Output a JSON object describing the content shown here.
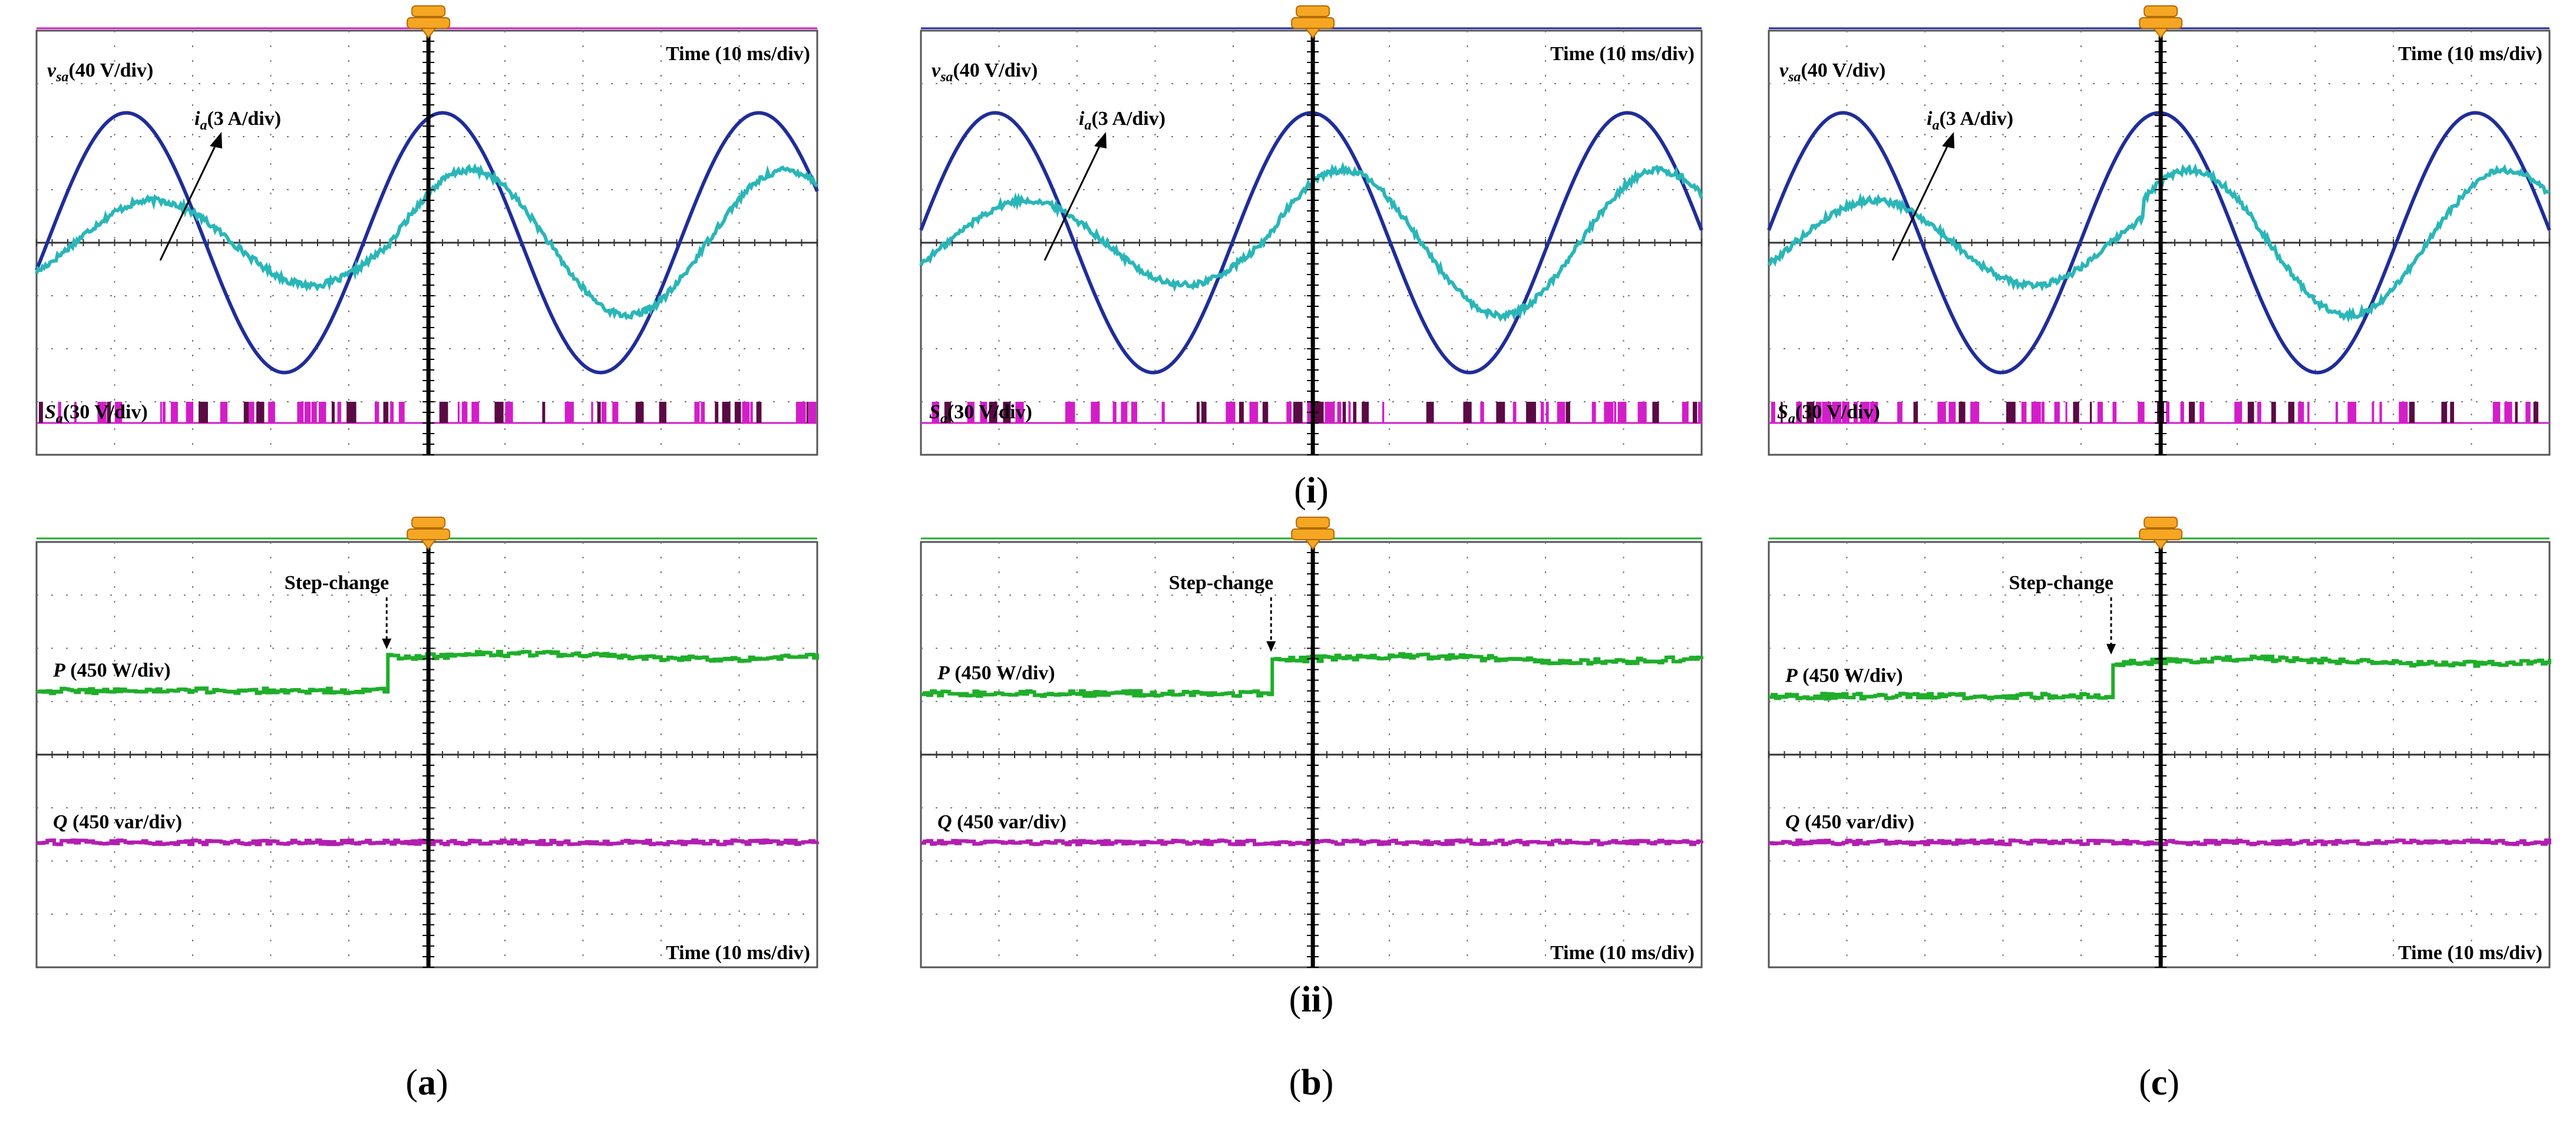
{
  "figure": {
    "row_labels": [
      "(i)",
      "(ii)"
    ],
    "column_captions": [
      "(a)",
      "(b)",
      "(c)"
    ]
  },
  "labels": {
    "time_div": "Time (10 ms/div)",
    "vsa_main": "v",
    "vsa_sub": "sa",
    "vsa_scale": "(40 V/div)",
    "ia_main": "i",
    "ia_sub": "a",
    "ia_scale": "(3 A/div)",
    "sa_main": "S",
    "sa_sub": "a",
    "sa_scale": "(30 V/div)",
    "step_change": "Step-change",
    "p_label": "P (450 W/div)",
    "q_label": "Q (450 var/div)"
  },
  "colors": {
    "voltage": "#1f2d9a",
    "current": "#2ab6b8",
    "switching": "#d21ec8",
    "switching_dark": "#5a0a44",
    "active_power": "#1fae2a",
    "reactive_power": "#b21eb0",
    "grid": "#555555",
    "trigger": "#f5a623"
  },
  "chart_data": [
    {
      "type": "line",
      "panel": "(a)-(i)",
      "title": "Time (10 ms/div)",
      "x_unit": "div",
      "xlim": [
        -5,
        5
      ],
      "ylim": [
        -4,
        4
      ],
      "series": [
        {
          "name": "v_sa (40 V/div)",
          "kind": "sine",
          "amplitude_div": 2.45,
          "period_div": 4.05,
          "peak_at_div": 0.2
        },
        {
          "name": "i_a (3 A/div)",
          "kind": "sine",
          "amplitude_div": [
            0.8,
            1.37
          ],
          "period_div": 4.05,
          "peak_at_div": 0.55,
          "step_at_div": -0.5,
          "step_height_div": 0.35
        },
        {
          "name": "S_a (30 V/div)",
          "kind": "pwm",
          "baseline_div": -3.4,
          "high_div": -3.0
        }
      ]
    },
    {
      "type": "line",
      "panel": "(b)-(i)",
      "title": "Time (10 ms/div)",
      "x_unit": "div",
      "xlim": [
        -5,
        5
      ],
      "ylim": [
        -4,
        4
      ],
      "series": [
        {
          "name": "v_sa (40 V/div)",
          "kind": "sine",
          "amplitude_div": 2.45,
          "period_div": 4.05,
          "peak_at_div": 0.0
        },
        {
          "name": "i_a (3 A/div)",
          "kind": "sine",
          "amplitude_div": [
            0.8,
            1.37
          ],
          "period_div": 4.05,
          "peak_at_div": 0.4,
          "step_at_div": -0.6,
          "step_height_div": 0.4
        },
        {
          "name": "S_a (30 V/div)",
          "kind": "pwm",
          "baseline_div": -3.4,
          "high_div": -3.0
        }
      ]
    },
    {
      "type": "line",
      "panel": "(c)-(i)",
      "title": "Time (10 ms/div)",
      "x_unit": "div",
      "xlim": [
        -5,
        5
      ],
      "ylim": [
        -4,
        4
      ],
      "series": [
        {
          "name": "v_sa (40 V/div)",
          "kind": "sine",
          "amplitude_div": 2.45,
          "period_div": 4.05,
          "peak_at_div": 0.0
        },
        {
          "name": "i_a (3 A/div)",
          "kind": "sine",
          "amplitude_div": [
            0.8,
            1.37
          ],
          "period_div": 4.05,
          "peak_at_div": 0.4,
          "step_at_div": -0.2,
          "step_height_div": 0.4
        },
        {
          "name": "S_a (30 V/div)",
          "kind": "pwm",
          "baseline_div": -3.4,
          "high_div": -3.0
        }
      ]
    },
    {
      "type": "line",
      "panel": "(a)-(ii)",
      "title": "Time (10 ms/div)",
      "x_unit": "div",
      "xlim": [
        -5,
        5
      ],
      "ylim": [
        -4,
        4
      ],
      "annotation": "Step-change",
      "series": [
        {
          "name": "P (450 W/div)",
          "kind": "step",
          "before_div": 1.2,
          "after_div": 1.85,
          "step_at_div": -0.5
        },
        {
          "name": "Q (450 var/div)",
          "kind": "flat",
          "level_div": -1.65
        }
      ]
    },
    {
      "type": "line",
      "panel": "(b)-(ii)",
      "title": "Time (10 ms/div)",
      "x_unit": "div",
      "xlim": [
        -5,
        5
      ],
      "ylim": [
        -4,
        4
      ],
      "annotation": "Step-change",
      "series": [
        {
          "name": "P (450 W/div)",
          "kind": "step",
          "before_div": 1.15,
          "after_div": 1.8,
          "step_at_div": -0.5
        },
        {
          "name": "Q (450 var/div)",
          "kind": "flat",
          "level_div": -1.65
        }
      ]
    },
    {
      "type": "line",
      "panel": "(c)-(ii)",
      "title": "Time (10 ms/div)",
      "x_unit": "div",
      "xlim": [
        -5,
        5
      ],
      "ylim": [
        -4,
        4
      ],
      "annotation": "Step-change",
      "series": [
        {
          "name": "P (450 W/div)",
          "kind": "step",
          "before_div": 1.1,
          "after_div": 1.75,
          "step_at_div": -0.6
        },
        {
          "name": "Q (450 var/div)",
          "kind": "flat",
          "level_div": -1.65
        }
      ]
    }
  ]
}
